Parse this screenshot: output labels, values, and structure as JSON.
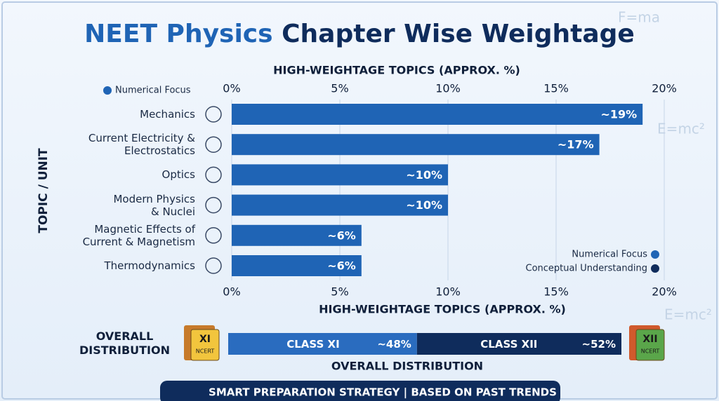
{
  "header": {
    "title_highlight": "NEET Physics",
    "title_rest": "Chapter Wise Weightage"
  },
  "decorations": [
    "F=ma",
    "E=mc²",
    "E=mc²"
  ],
  "chart_data": [
    {
      "type": "hbar",
      "x_label": "HIGH-WEIGHTAGE TOPICS (APPROX. %)",
      "y_label": "TOPIC / UNIT",
      "top_note": "Numerical Focus",
      "categories": [
        "Mechanics",
        "Current Electricity &\nElectrostatics",
        "Optics",
        "Modern Physics\n& Nuclei",
        "Magnetic Effects of\nCurrent & Magnetism",
        "Thermodynamics"
      ],
      "values": [
        19,
        17,
        10,
        10,
        6,
        6
      ],
      "value_labels": [
        "~19%",
        "~17%",
        "~10%",
        "~10%",
        "~6%",
        "~6%"
      ],
      "color": "#1f64b5",
      "xlim": [
        0,
        20
      ],
      "xticks": [
        {
          "value": 0,
          "label": "0%"
        },
        {
          "value": 5,
          "label": "5%"
        },
        {
          "value": 10,
          "label": "10%"
        },
        {
          "value": 15,
          "label": "15%"
        },
        {
          "value": 20,
          "label": "20%"
        }
      ],
      "grid": true,
      "legend_position": "lower right",
      "legend_labels": [
        "Numerical Focus",
        "Conceptual Understanding"
      ]
    },
    {
      "type": "stacked_hbar",
      "title": "OVERALL DISTRIBUTION",
      "label": "OVERALL\nDISTRIBUTION",
      "xlim": [
        0,
        100
      ],
      "series": [
        {
          "name": "CLASS XI",
          "color": "#2a6cbf",
          "values": [
            48
          ],
          "value_labels": [
            "~48%"
          ]
        },
        {
          "name": "CLASS XII",
          "color": "#0f2c5c",
          "values": [
            52
          ],
          "value_labels": [
            "~52%"
          ]
        }
      ]
    }
  ],
  "books": [
    {
      "label": "XI",
      "sub": "NCERT"
    },
    {
      "label": "XII",
      "sub": "NCERT"
    }
  ],
  "footer": "SMART PREPARATION STRATEGY | BASED ON PAST TRENDS"
}
